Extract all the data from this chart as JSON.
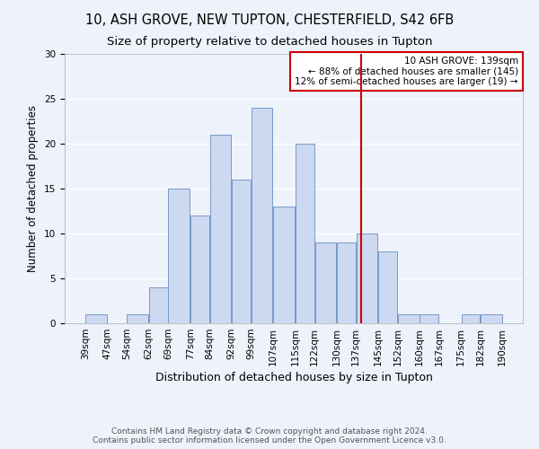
{
  "title1": "10, ASH GROVE, NEW TUPTON, CHESTERFIELD, S42 6FB",
  "title2": "Size of property relative to detached houses in Tupton",
  "xlabel": "Distribution of detached houses by size in Tupton",
  "ylabel": "Number of detached properties",
  "bin_edges": [
    39,
    47,
    54,
    62,
    69,
    77,
    84,
    92,
    99,
    107,
    115,
    122,
    130,
    137,
    145,
    152,
    160,
    167,
    175,
    182,
    190
  ],
  "counts": [
    1,
    0,
    1,
    4,
    15,
    12,
    21,
    16,
    24,
    13,
    20,
    9,
    9,
    10,
    8,
    1,
    1,
    0,
    1,
    1
  ],
  "bar_facecolor": "#ccd9f0",
  "bar_edgecolor": "#7799cc",
  "vline_x": 139,
  "vline_color": "#cc0000",
  "annotation_title": "10 ASH GROVE: 139sqm",
  "annotation_line1": "← 88% of detached houses are smaller (145)",
  "annotation_line2": "12% of semi-detached houses are larger (19) →",
  "annotation_box_edgecolor": "#cc0000",
  "annotation_box_facecolor": "#ffffff",
  "ylim": [
    0,
    30
  ],
  "yticks": [
    0,
    5,
    10,
    15,
    20,
    25,
    30
  ],
  "tick_labels": [
    "39sqm",
    "47sqm",
    "54sqm",
    "62sqm",
    "69sqm",
    "77sqm",
    "84sqm",
    "92sqm",
    "99sqm",
    "107sqm",
    "115sqm",
    "122sqm",
    "130sqm",
    "137sqm",
    "145sqm",
    "152sqm",
    "160sqm",
    "167sqm",
    "175sqm",
    "182sqm",
    "190sqm"
  ],
  "footer1": "Contains HM Land Registry data © Crown copyright and database right 2024.",
  "footer2": "Contains public sector information licensed under the Open Government Licence v3.0.",
  "bg_color": "#eef2fa",
  "grid_color": "#ffffff",
  "title1_fontsize": 10.5,
  "title2_fontsize": 9.5,
  "xlabel_fontsize": 9,
  "ylabel_fontsize": 8.5,
  "tick_fontsize": 7.5,
  "footer_fontsize": 6.5,
  "annotation_fontsize": 7.5
}
